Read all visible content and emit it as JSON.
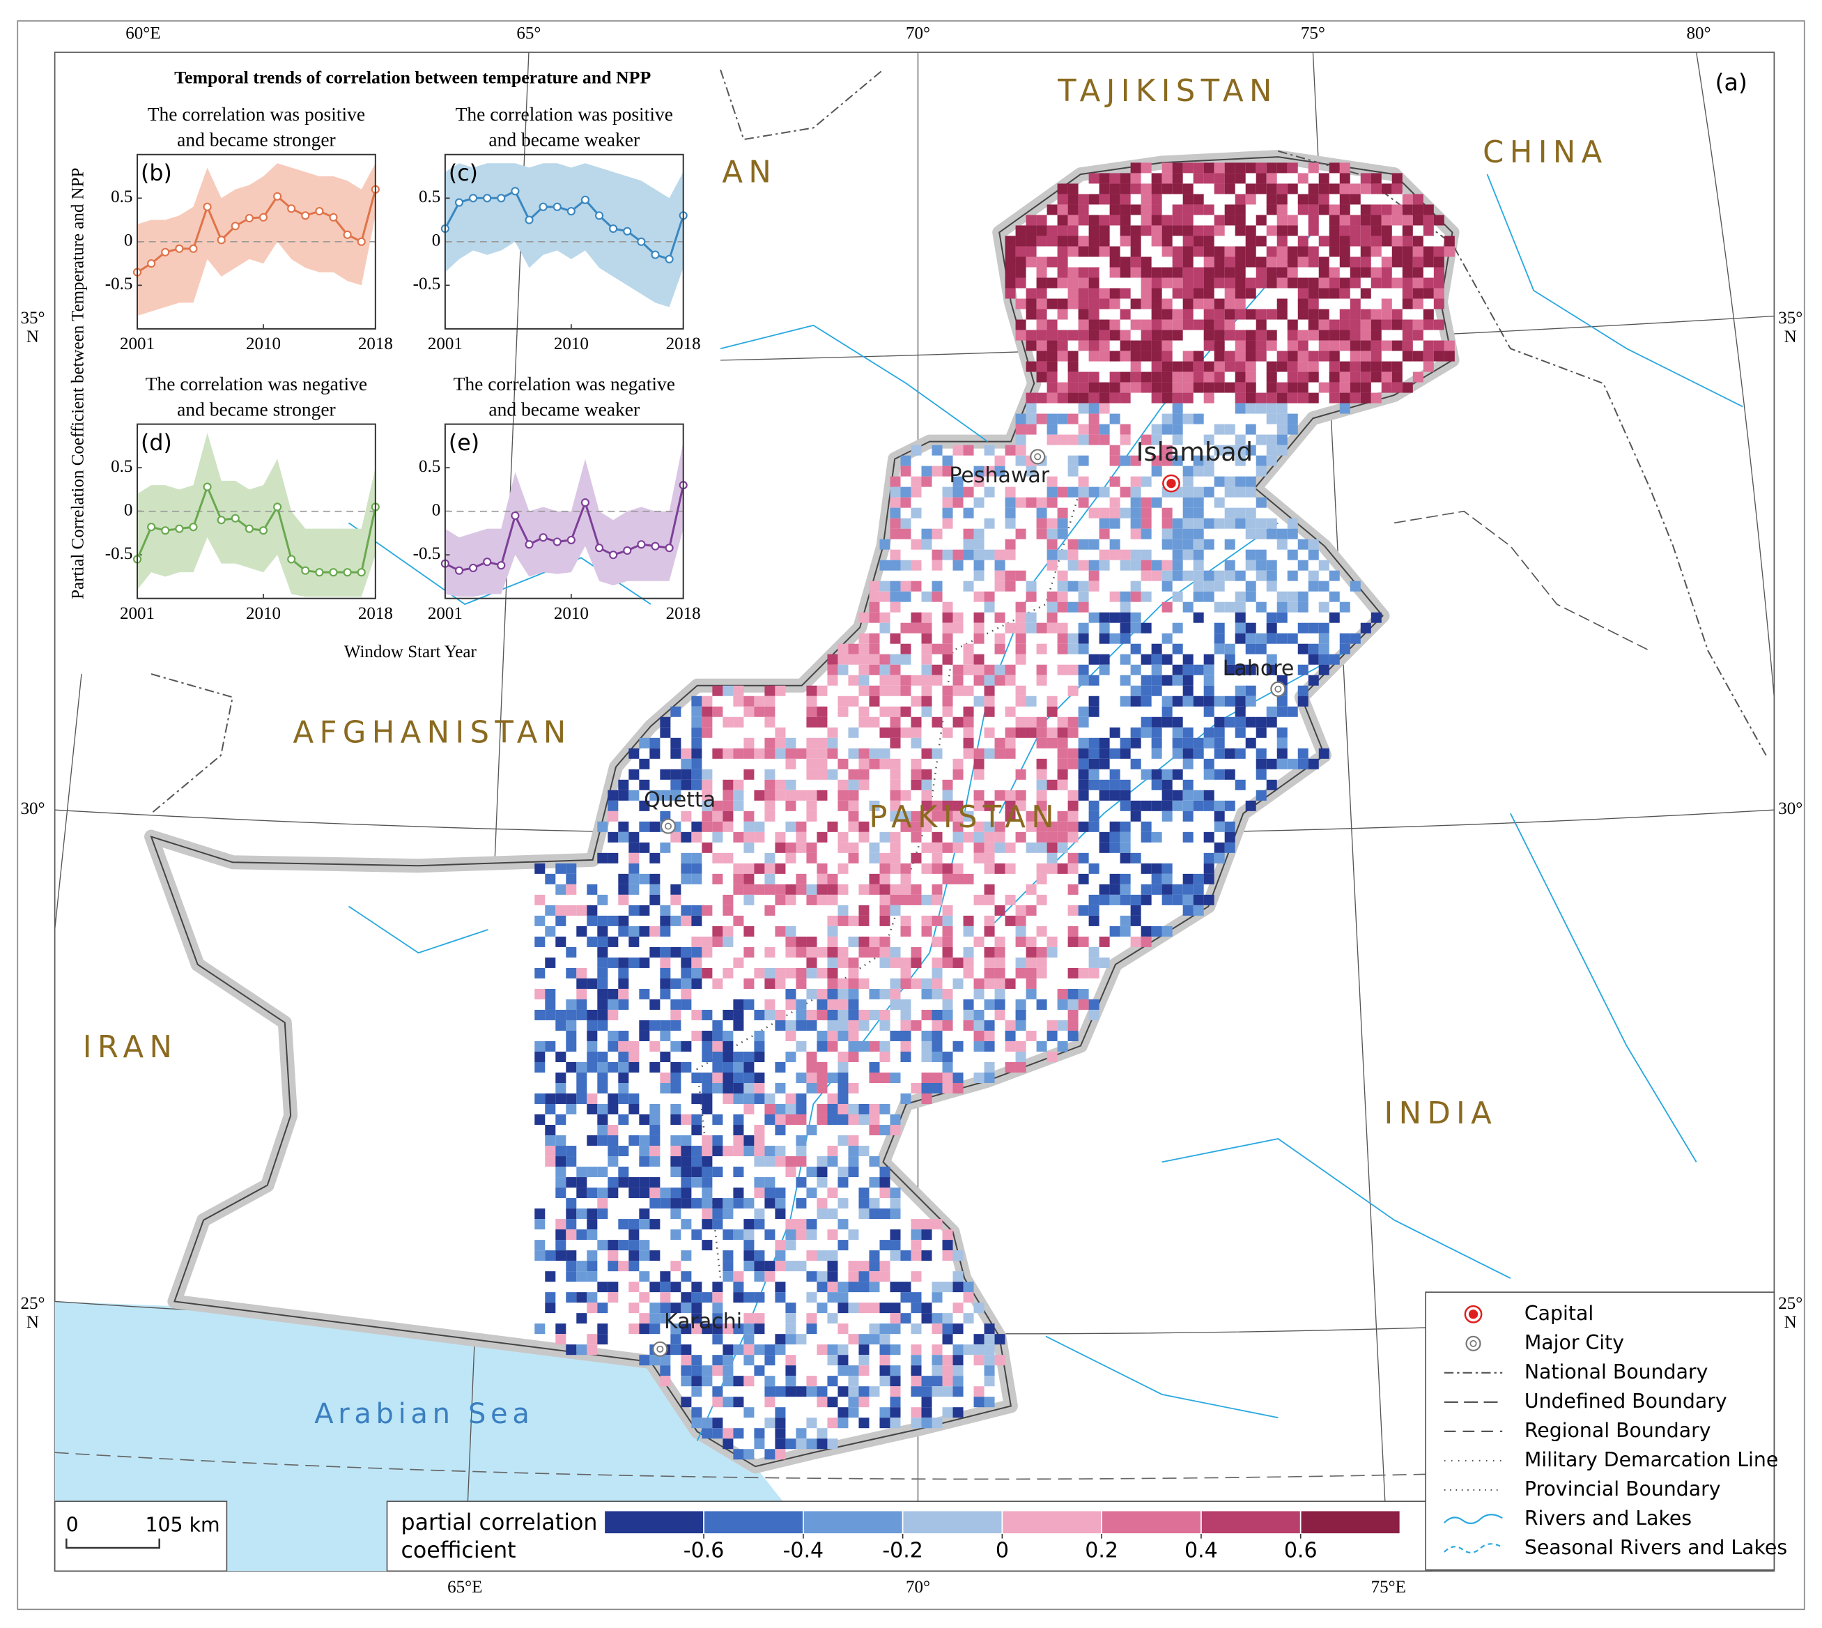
{
  "map": {
    "panel_label": "(a)",
    "countries": [
      "TAJIKISTAN",
      "CHINA",
      "AN",
      "AFGHANISTAN",
      "PAKISTAN",
      "IRAN",
      "INDIA"
    ],
    "sea": "Arabian Sea",
    "cities": [
      {
        "name": "Islambad",
        "kind": "capital"
      },
      {
        "name": "Peshawar",
        "kind": "major"
      },
      {
        "name": "Lahore",
        "kind": "major"
      },
      {
        "name": "Quetta",
        "kind": "major"
      },
      {
        "name": "Karachi",
        "kind": "major"
      }
    ],
    "graticule_top": [
      "60°E",
      "65°",
      "70°",
      "75°",
      "80°"
    ],
    "graticule_bottom": [
      "65°E",
      "70°",
      "75°E"
    ],
    "graticule_left": [
      [
        "35°",
        "N"
      ],
      [
        "30°"
      ],
      [
        "25°",
        "N"
      ]
    ],
    "graticule_right": [
      [
        "35°",
        "N"
      ],
      [
        "30°"
      ],
      [
        "25°",
        "N"
      ]
    ],
    "scale_bar": {
      "zero": "0",
      "length": "105 km"
    },
    "legend": [
      "Capital",
      "Major City",
      "National Boundary",
      "Undefined Boundary",
      "Regional Boundary",
      "Military Demarcation Line",
      "Provincial Boundary",
      "Rivers and Lakes",
      "Seasonal Rivers and Lakes"
    ],
    "colorbar": {
      "title_lines": [
        "partial correlation",
        "coefficient"
      ],
      "colors": [
        "#22378f",
        "#3f6ec2",
        "#6a9bd8",
        "#a5c2e4",
        "#f1a8c2",
        "#dd7097",
        "#b83e6b",
        "#8c1f44"
      ],
      "lim": [
        -0.8,
        0.8
      ],
      "ticks": [
        -0.6,
        -0.4,
        -0.2,
        0,
        0.2,
        0.4,
        0.6
      ]
    }
  },
  "inset": {
    "title": "Temporal trends of correlation between temperature and NPP",
    "y_label": "Partial Correlation Coefficient between Temperature and NPP",
    "x_label": "Window Start Year"
  },
  "chart_data": [
    {
      "type": "line",
      "panel": "(b)",
      "title_lines": [
        "The correlation was positive",
        "and became stronger"
      ],
      "x": [
        2001,
        2002,
        2003,
        2004,
        2005,
        2006,
        2007,
        2008,
        2009,
        2010,
        2011,
        2012,
        2013,
        2014,
        2015,
        2016,
        2017,
        2018
      ],
      "values": [
        -0.35,
        -0.25,
        -0.12,
        -0.08,
        -0.08,
        0.4,
        0.02,
        0.18,
        0.27,
        0.28,
        0.52,
        0.38,
        0.3,
        0.35,
        0.28,
        0.08,
        0.0,
        0.6
      ],
      "band_upper": [
        0.2,
        0.25,
        0.25,
        0.3,
        0.4,
        0.85,
        0.5,
        0.6,
        0.65,
        0.75,
        0.9,
        0.85,
        0.8,
        0.75,
        0.75,
        0.7,
        0.6,
        0.9
      ],
      "band_lower": [
        -0.85,
        -0.8,
        -0.75,
        -0.7,
        -0.7,
        -0.2,
        -0.4,
        -0.3,
        -0.2,
        -0.25,
        0.0,
        -0.2,
        -0.3,
        -0.35,
        -0.35,
        -0.45,
        -0.5,
        0.3
      ],
      "color": "#e0734a",
      "band_color": "#f7cbbb",
      "xlim": [
        2001,
        2018
      ],
      "xticks": [
        2001,
        2010,
        2018
      ],
      "ylim": [
        -1,
        1
      ],
      "yticks": [
        -0.5,
        0,
        0.5
      ]
    },
    {
      "type": "line",
      "panel": "(c)",
      "title_lines": [
        "The correlation was positive",
        "and became weaker"
      ],
      "x": [
        2001,
        2002,
        2003,
        2004,
        2005,
        2006,
        2007,
        2008,
        2009,
        2010,
        2011,
        2012,
        2013,
        2014,
        2015,
        2016,
        2017,
        2018
      ],
      "values": [
        0.15,
        0.45,
        0.5,
        0.5,
        0.5,
        0.58,
        0.25,
        0.4,
        0.4,
        0.35,
        0.48,
        0.3,
        0.15,
        0.12,
        0.0,
        -0.15,
        -0.2,
        0.3
      ],
      "band_upper": [
        0.8,
        0.9,
        0.85,
        0.9,
        0.9,
        0.9,
        0.85,
        0.9,
        0.9,
        0.85,
        0.9,
        0.85,
        0.8,
        0.75,
        0.7,
        0.6,
        0.5,
        0.8
      ],
      "band_lower": [
        -0.35,
        -0.2,
        -0.1,
        -0.15,
        -0.1,
        0.0,
        -0.3,
        -0.15,
        -0.1,
        -0.2,
        -0.1,
        -0.3,
        -0.4,
        -0.5,
        -0.6,
        -0.7,
        -0.75,
        -0.3
      ],
      "color": "#3a87c0",
      "band_color": "#bad8ea",
      "xlim": [
        2001,
        2018
      ],
      "xticks": [
        2001,
        2010,
        2018
      ],
      "ylim": [
        -1,
        1
      ],
      "yticks": [
        -0.5,
        0,
        0.5
      ]
    },
    {
      "type": "line",
      "panel": "(d)",
      "title_lines": [
        "The correlation was negative",
        "and became stronger"
      ],
      "x": [
        2001,
        2002,
        2003,
        2004,
        2005,
        2006,
        2007,
        2008,
        2009,
        2010,
        2011,
        2012,
        2013,
        2014,
        2015,
        2016,
        2017,
        2018
      ],
      "values": [
        -0.55,
        -0.18,
        -0.22,
        -0.2,
        -0.18,
        0.28,
        -0.1,
        -0.08,
        -0.2,
        -0.22,
        0.05,
        -0.55,
        -0.68,
        -0.7,
        -0.7,
        -0.7,
        -0.7,
        0.05
      ],
      "band_upper": [
        0.2,
        0.3,
        0.3,
        0.25,
        0.3,
        0.9,
        0.35,
        0.35,
        0.25,
        0.3,
        0.6,
        0.0,
        -0.2,
        -0.2,
        -0.2,
        -0.2,
        -0.2,
        0.5
      ],
      "band_lower": [
        -0.9,
        -0.7,
        -0.75,
        -0.7,
        -0.7,
        -0.3,
        -0.6,
        -0.6,
        -0.65,
        -0.7,
        -0.5,
        -0.95,
        -0.98,
        -0.98,
        -0.98,
        -0.98,
        -0.98,
        -0.5
      ],
      "color": "#6aa84f",
      "band_color": "#cfe3c3",
      "xlim": [
        2001,
        2018
      ],
      "xticks": [
        2001,
        2010,
        2018
      ],
      "ylim": [
        -1,
        1
      ],
      "yticks": [
        -0.5,
        0,
        0.5
      ]
    },
    {
      "type": "line",
      "panel": "(e)",
      "title_lines": [
        "The correlation was negative",
        "and became weaker"
      ],
      "x": [
        2001,
        2002,
        2003,
        2004,
        2005,
        2006,
        2007,
        2008,
        2009,
        2010,
        2011,
        2012,
        2013,
        2014,
        2015,
        2016,
        2017,
        2018
      ],
      "values": [
        -0.6,
        -0.68,
        -0.65,
        -0.58,
        -0.62,
        -0.05,
        -0.38,
        -0.3,
        -0.35,
        -0.33,
        0.1,
        -0.42,
        -0.5,
        -0.45,
        -0.38,
        -0.4,
        -0.42,
        0.3
      ],
      "band_upper": [
        -0.2,
        -0.3,
        -0.25,
        -0.2,
        -0.2,
        0.45,
        0.0,
        0.05,
        0.0,
        0.0,
        0.6,
        0.0,
        -0.1,
        0.0,
        0.05,
        0.0,
        0.0,
        0.8
      ],
      "band_lower": [
        -0.95,
        -0.98,
        -0.98,
        -0.95,
        -0.95,
        -0.5,
        -0.75,
        -0.7,
        -0.72,
        -0.7,
        -0.4,
        -0.8,
        -0.85,
        -0.8,
        -0.8,
        -0.8,
        -0.8,
        -0.2
      ],
      "color": "#7d3f98",
      "band_color": "#dac6e4",
      "xlim": [
        2001,
        2018
      ],
      "xticks": [
        2001,
        2010,
        2018
      ],
      "ylim": [
        -1,
        1
      ],
      "yticks": [
        -0.5,
        0,
        0.5
      ]
    }
  ]
}
